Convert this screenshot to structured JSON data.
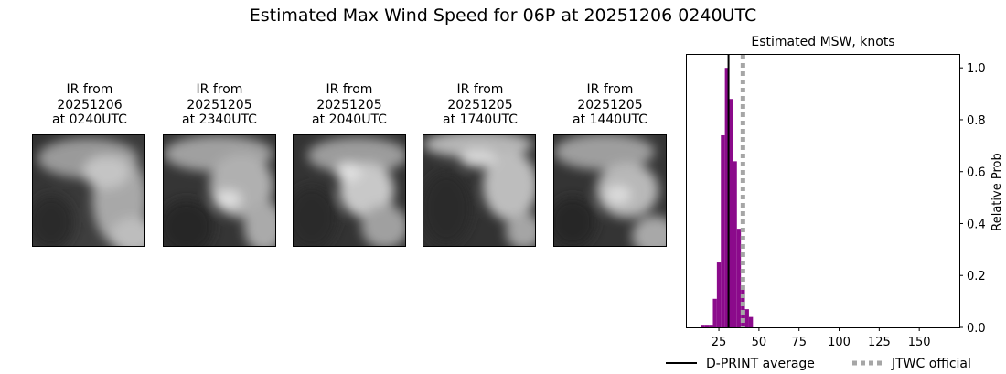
{
  "title": "Estimated Max Wind Speed for 06P at 20251206 0240UTC",
  "panels": [
    {
      "line1": "IR from",
      "line2": "20251206",
      "line3": "at 0240UTC"
    },
    {
      "line1": "IR from",
      "line2": "20251205",
      "line3": "at 2340UTC"
    },
    {
      "line1": "IR from",
      "line2": "20251205",
      "line3": "at 2040UTC"
    },
    {
      "line1": "IR from",
      "line2": "20251205",
      "line3": "at 1740UTC"
    },
    {
      "line1": "IR from",
      "line2": "20251205",
      "line3": "at 1440UTC"
    }
  ],
  "chart_data": {
    "type": "bar",
    "title": "Estimated MSW, knots",
    "ylabel": "Relative Prob",
    "xlim": [
      5,
      175
    ],
    "ylim": [
      0,
      1.05
    ],
    "xticks": [
      25,
      50,
      75,
      100,
      125,
      150
    ],
    "yticks": [
      0.0,
      0.2,
      0.4,
      0.6,
      0.8,
      1.0
    ],
    "bin_width": 2.5,
    "bins": [
      {
        "x": 15,
        "y": 0.01
      },
      {
        "x": 17.5,
        "y": 0.01
      },
      {
        "x": 20,
        "y": 0.01
      },
      {
        "x": 22.5,
        "y": 0.11
      },
      {
        "x": 25,
        "y": 0.25
      },
      {
        "x": 27.5,
        "y": 0.74
      },
      {
        "x": 30,
        "y": 1.0
      },
      {
        "x": 32.5,
        "y": 0.88
      },
      {
        "x": 35,
        "y": 0.64
      },
      {
        "x": 37.5,
        "y": 0.38
      },
      {
        "x": 40,
        "y": 0.16
      },
      {
        "x": 42.5,
        "y": 0.07
      },
      {
        "x": 45,
        "y": 0.04
      }
    ],
    "color_bars": "#8b0a8b",
    "dprint_average": 31,
    "jtwc_official": 40,
    "legend": [
      {
        "label": "D-PRINT average",
        "style": "solid",
        "color": "#000000"
      },
      {
        "label": "JTWC official",
        "style": "dotted",
        "color": "#a6a6a6"
      }
    ],
    "legend_position": "bottom-right"
  }
}
